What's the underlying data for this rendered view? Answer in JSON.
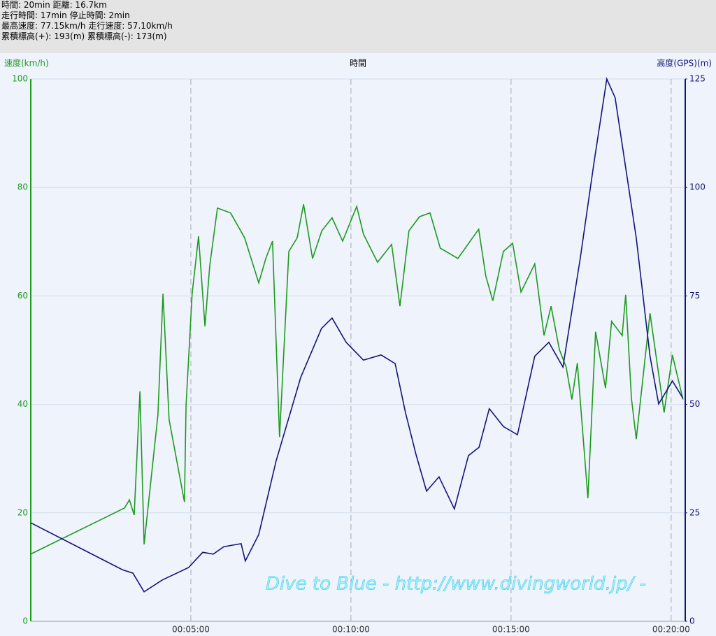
{
  "header": {
    "lines": [
      "時間: 20min 距離: 16.7km",
      "走行時間: 17min 停止時間: 2min",
      "最高速度: 77.15km/h 走行速度: 57.10km/h",
      "累積標高(+): 193(m) 累積標高(-): 173(m)"
    ]
  },
  "chart_data": {
    "type": "line",
    "xlabel": "時間",
    "ylabel": "速度(km/h)",
    "y2label": "高度(GPS)(m)",
    "annotation": "Dive to Blue - http://www.divingworld.jp/ -",
    "xlim": [
      0,
      20.44
    ],
    "xticks": [
      {
        "value": 5,
        "label": "00:05:00"
      },
      {
        "value": 10,
        "label": "00:10:00"
      },
      {
        "value": 15,
        "label": "00:15:00"
      },
      {
        "value": 20,
        "label": "00:20:00"
      }
    ],
    "ylim": [
      0,
      100
    ],
    "yticks": [
      0,
      20,
      40,
      60,
      80,
      100
    ],
    "y2lim": [
      0,
      125
    ],
    "y2ticks": [
      0,
      25,
      50,
      75,
      100,
      125
    ],
    "grid": true,
    "series": [
      {
        "name": "速度(km/h)",
        "color": "#1e9a1e",
        "x": [
          0,
          2.93,
          3.08,
          3.23,
          3.41,
          3.54,
          3.97,
          4.13,
          4.32,
          4.8,
          4.85,
          5.04,
          5.24,
          5.44,
          5.59,
          5.83,
          6.24,
          6.68,
          7.12,
          7.34,
          7.55,
          7.77,
          8.06,
          8.32,
          8.52,
          8.8,
          9.09,
          9.41,
          9.74,
          10.18,
          10.39,
          10.83,
          11.27,
          11.53,
          11.81,
          12.14,
          12.47,
          12.79,
          13.34,
          13.99,
          14.21,
          14.43,
          14.76,
          15.05,
          15.31,
          15.74,
          16.03,
          16.25,
          16.51,
          16.72,
          16.9,
          17.07,
          17.4,
          17.64,
          17.95,
          18.14,
          18.47,
          18.58,
          18.76,
          18.91,
          19.34,
          19.78,
          20.04,
          20.37
        ],
        "values": [
          12.4,
          20.9,
          22.4,
          19.6,
          42.4,
          14.2,
          38.0,
          60.4,
          37.2,
          22.0,
          39.8,
          60.4,
          71.0,
          54.4,
          65.6,
          76.2,
          75.3,
          70.7,
          62.4,
          66.9,
          70.1,
          34.0,
          68.2,
          70.7,
          76.9,
          66.9,
          72.0,
          74.4,
          70.1,
          76.5,
          71.4,
          66.2,
          69.5,
          58.1,
          72.0,
          74.6,
          75.3,
          68.8,
          66.9,
          72.3,
          63.7,
          59.1,
          68.2,
          69.7,
          60.7,
          65.9,
          52.7,
          58.1,
          50.1,
          46.9,
          40.9,
          47.6,
          22.7,
          53.4,
          43.0,
          55.3,
          52.7,
          60.2,
          41.1,
          33.6,
          56.8,
          38.5,
          49.1,
          40.9
        ]
      },
      {
        "name": "高度(GPS)(m)",
        "color": "#14147a",
        "axis": "y2",
        "x": [
          0,
          2.86,
          3.19,
          3.54,
          4.1,
          4.93,
          5.37,
          5.7,
          6.03,
          6.57,
          6.7,
          7.12,
          7.66,
          8.43,
          9.08,
          9.41,
          9.85,
          10.39,
          10.94,
          11.38,
          11.7,
          12.03,
          12.36,
          12.75,
          13.23,
          13.67,
          14.0,
          14.32,
          14.76,
          15.2,
          15.74,
          16.18,
          16.62,
          17.16,
          17.6,
          17.99,
          18.25,
          18.91,
          19.34,
          19.61,
          20.04,
          20.37
        ],
        "values": [
          22.7,
          11.9,
          11.1,
          6.8,
          9.5,
          12.4,
          15.9,
          15.5,
          17.2,
          17.9,
          13.9,
          20.0,
          36.9,
          56.2,
          67.5,
          69.9,
          64.3,
          60.2,
          61.4,
          59.4,
          48.2,
          38.5,
          30.0,
          33.3,
          25.9,
          38.2,
          40.1,
          49.0,
          44.9,
          43.0,
          61.1,
          64.3,
          58.6,
          83.6,
          106.2,
          125.0,
          120.7,
          88.4,
          61.1,
          50.1,
          55.4,
          51.4
        ]
      }
    ]
  }
}
